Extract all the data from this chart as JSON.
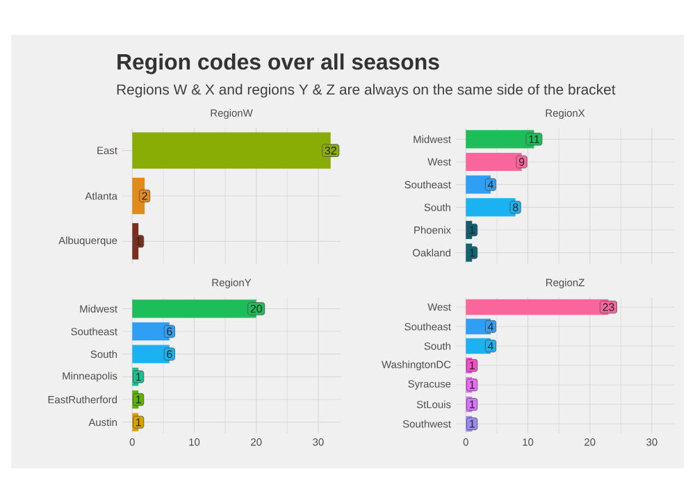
{
  "chart_data": [
    {
      "type": "other",
      "title": "Region codes over all seasons",
      "subtitle": "Regions W & X and regions Y & Z are always on the same side of the bracket"
    },
    {
      "type": "bar",
      "orientation": "horizontal",
      "title": "RegionW",
      "categories": [
        "East",
        "Atlanta",
        "Albuquerque"
      ],
      "values": [
        32,
        2,
        1
      ],
      "colors": [
        "#8aad05",
        "#e08b1a",
        "#7a2e1e"
      ],
      "xlim": [
        -1.6,
        33.6
      ],
      "xticks": [
        0,
        10,
        20,
        30
      ],
      "tick_labels": "y",
      "grid": true,
      "data_labels": true
    },
    {
      "type": "bar",
      "orientation": "horizontal",
      "title": "RegionX",
      "categories": [
        "Midwest",
        "West",
        "Southeast",
        "South",
        "Phoenix",
        "Oakland"
      ],
      "values": [
        11,
        9,
        4,
        8,
        1,
        1
      ],
      "colors": [
        "#1dbe5a",
        "#f8669b",
        "#2e9ff5",
        "#1ab2f0",
        "#0e5e6f",
        "#0f6673"
      ],
      "xlim": [
        -1.6,
        33.6
      ],
      "xticks": [
        0,
        10,
        20,
        30
      ],
      "tick_labels": "y",
      "grid": true,
      "data_labels": true
    },
    {
      "type": "bar",
      "orientation": "horizontal",
      "title": "RegionY",
      "categories": [
        "Midwest",
        "Southeast",
        "South",
        "Minneapolis",
        "EastRutherford",
        "Austin"
      ],
      "values": [
        20,
        6,
        6,
        1,
        1,
        1
      ],
      "colors": [
        "#1dbe5a",
        "#2e9ff5",
        "#1ab2f0",
        "#1cbd8f",
        "#59b300",
        "#d9a100"
      ],
      "xlim": [
        -1.6,
        33.6
      ],
      "xticks": [
        0,
        10,
        20,
        30
      ],
      "grid": true,
      "data_labels": true
    },
    {
      "type": "bar",
      "orientation": "horizontal",
      "title": "RegionZ",
      "categories": [
        "West",
        "Southeast",
        "South",
        "WashingtonDC",
        "Syracuse",
        "StLouis",
        "Southwest"
      ],
      "values": [
        23,
        4,
        4,
        1,
        1,
        1,
        1
      ],
      "colors": [
        "#f8669b",
        "#2e9ff5",
        "#1ab2f0",
        "#f050c8",
        "#e76bf3",
        "#d575fe",
        "#9b8af0"
      ],
      "xlim": [
        -1.6,
        33.6
      ],
      "xticks": [
        0,
        10,
        20,
        30
      ],
      "grid": true,
      "data_labels": true
    }
  ]
}
